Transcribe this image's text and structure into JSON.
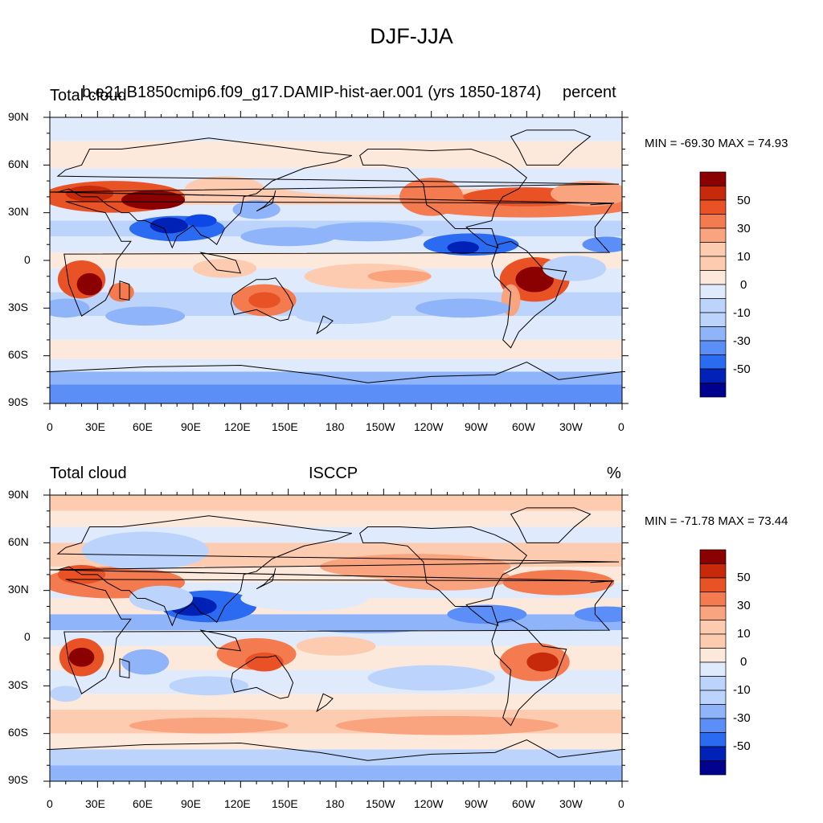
{
  "figure": {
    "title": "DJF-JJA"
  },
  "colors": {
    "palette": [
      "#00008f",
      "#0021b5",
      "#0d47e5",
      "#2a6bf2",
      "#5b8ff7",
      "#8fb4fa",
      "#bcd4fb",
      "#dfeafc",
      "#fde9dc",
      "#fccbb0",
      "#f9a47f",
      "#f47a4f",
      "#e85224",
      "#c62a0b",
      "#8b0000"
    ],
    "land_outline": "#000000"
  },
  "panels": [
    {
      "left_title": "Total cloud",
      "center_title": "b.e21.B1850cmip6.f09_g17.DAMIP-hist-aer.001 (yrs 1850-1874)",
      "right_title": "percent",
      "min_label": "MIN =",
      "min_value": "-69.30",
      "max_label": "MAX =",
      "max_value": "74.93"
    },
    {
      "left_title": "Total cloud",
      "center_title": "ISCCP",
      "right_title": "%",
      "min_label": "MIN =",
      "min_value": "-71.78",
      "max_label": "MAX =",
      "max_value": "73.44"
    }
  ],
  "axes": {
    "lat_labels": [
      "90N",
      "60N",
      "30N",
      "0",
      "30S",
      "60S",
      "90S"
    ],
    "lon_labels": [
      "0",
      "30E",
      "60E",
      "90E",
      "120E",
      "150E",
      "180",
      "150W",
      "120W",
      "90W",
      "60W",
      "30W",
      "0"
    ]
  },
  "colorbar": {
    "labels": [
      "50",
      "30",
      "10",
      "0",
      "-10",
      "-30",
      "-50"
    ]
  }
}
